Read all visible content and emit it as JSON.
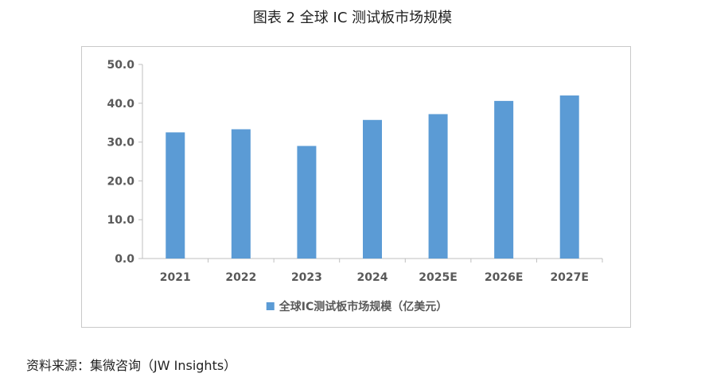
{
  "page": {
    "title": "图表 2 全球 IC 测试板市场规模",
    "source": "资料来源：集微咨询（JW Insights）"
  },
  "colors": {
    "bar": "#5b9bd5",
    "axis": "#bfbfbf",
    "text": "#595959"
  },
  "chart_data": {
    "type": "bar",
    "categories": [
      "2021",
      "2022",
      "2023",
      "2024",
      "2025E",
      "2026E",
      "2027E"
    ],
    "series": [
      {
        "name": "全球IC测试板市场规模（亿美元）",
        "values": [
          32.5,
          33.3,
          29.0,
          35.7,
          37.2,
          40.6,
          42.0
        ]
      }
    ],
    "yticks": [
      "0.0",
      "10.0",
      "20.0",
      "30.0",
      "40.0",
      "50.0"
    ],
    "ylim": [
      0,
      50
    ],
    "grid": false,
    "legend_position": "bottom"
  }
}
